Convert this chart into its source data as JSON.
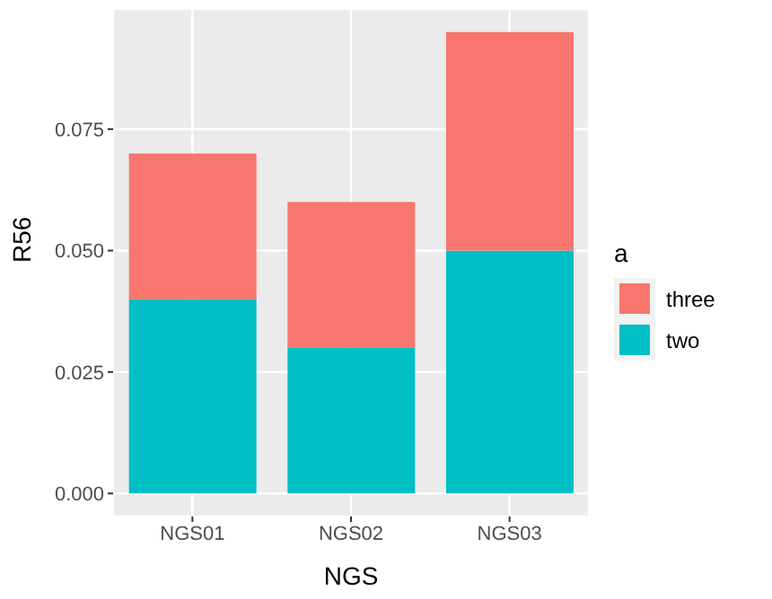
{
  "chart_data": {
    "type": "bar",
    "xlabel": "NGS",
    "ylabel": "R56",
    "legend_title": "a",
    "categories": [
      "NGS01",
      "NGS02",
      "NGS03"
    ],
    "stacked": true,
    "series": [
      {
        "name": "two",
        "color": "#00bfc4",
        "values": [
          0.04,
          0.03,
          0.05
        ]
      },
      {
        "name": "three",
        "color": "#f8766d",
        "values": [
          0.03,
          0.03,
          0.045
        ]
      }
    ],
    "ylim": [
      -0.00475,
      0.09975
    ],
    "yticks": [
      {
        "value": 0,
        "label": "0.000"
      },
      {
        "value": 0.025,
        "label": "0.025"
      },
      {
        "value": 0.05,
        "label": "0.050"
      },
      {
        "value": 0.075,
        "label": "0.075"
      }
    ],
    "grid": true,
    "legend": "right"
  }
}
